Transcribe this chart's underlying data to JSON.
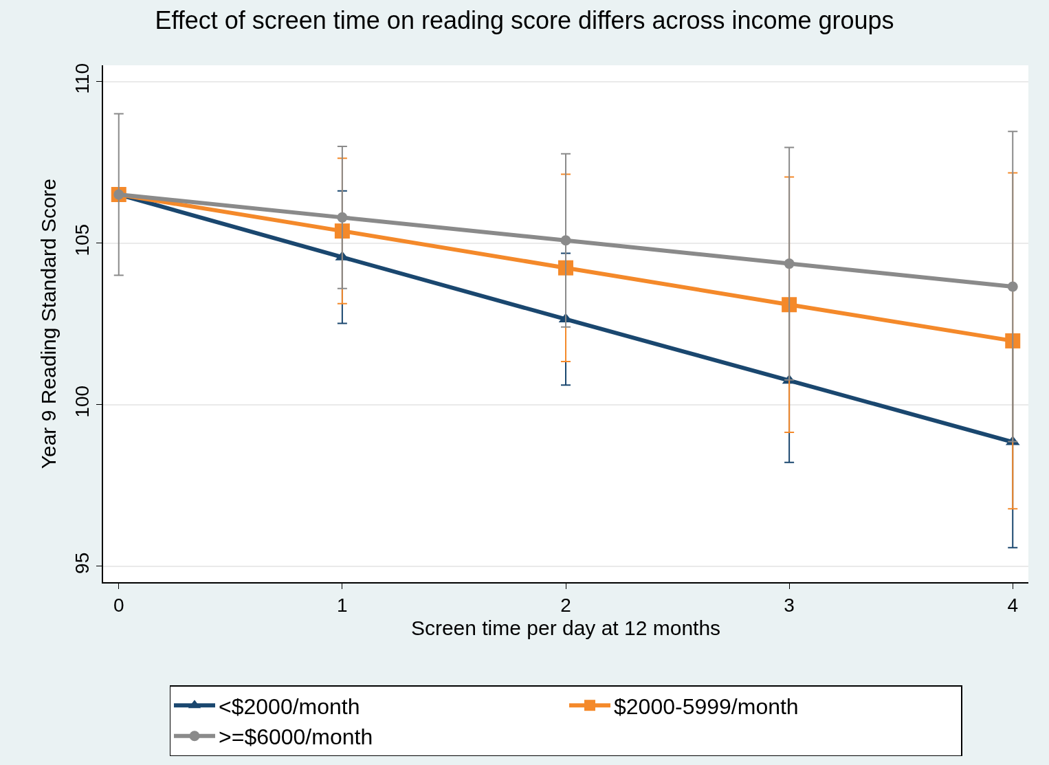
{
  "chart_data": {
    "type": "line",
    "title": "Effect of screen time on reading score differs across income groups",
    "xlabel": "Screen time per day at 12 months",
    "ylabel": "Year 9 Reading Standard Score",
    "x": [
      0,
      1,
      2,
      3,
      4
    ],
    "series": [
      {
        "name": "<$2000/month",
        "color": "#1a476f",
        "marker": "triangle",
        "values": [
          106.5,
          104.56,
          102.64,
          100.74,
          98.84
        ],
        "errors": [
          null,
          2.05,
          2.04,
          2.53,
          3.27
        ]
      },
      {
        "name": "$2000-5999/month",
        "color": "#f4892a",
        "marker": "square",
        "values": [
          106.5,
          105.37,
          104.23,
          103.09,
          101.97
        ],
        "errors": [
          null,
          2.25,
          2.9,
          3.95,
          5.2
        ]
      },
      {
        "name": ">=$6000/month",
        "color": "#8a8a8a",
        "marker": "circle",
        "values": [
          106.5,
          105.79,
          105.08,
          104.36,
          103.65
        ],
        "errors": [
          2.5,
          2.2,
          2.68,
          3.6,
          4.8
        ]
      }
    ],
    "xlim": [
      -0.07,
      4.07
    ],
    "xticks": [
      0,
      1,
      2,
      3,
      4
    ],
    "ylim": [
      94.5,
      110.5
    ],
    "yticks": [
      95,
      100,
      105,
      110
    ],
    "grid": "y",
    "legend": "bottom",
    "line_style": "solid"
  }
}
